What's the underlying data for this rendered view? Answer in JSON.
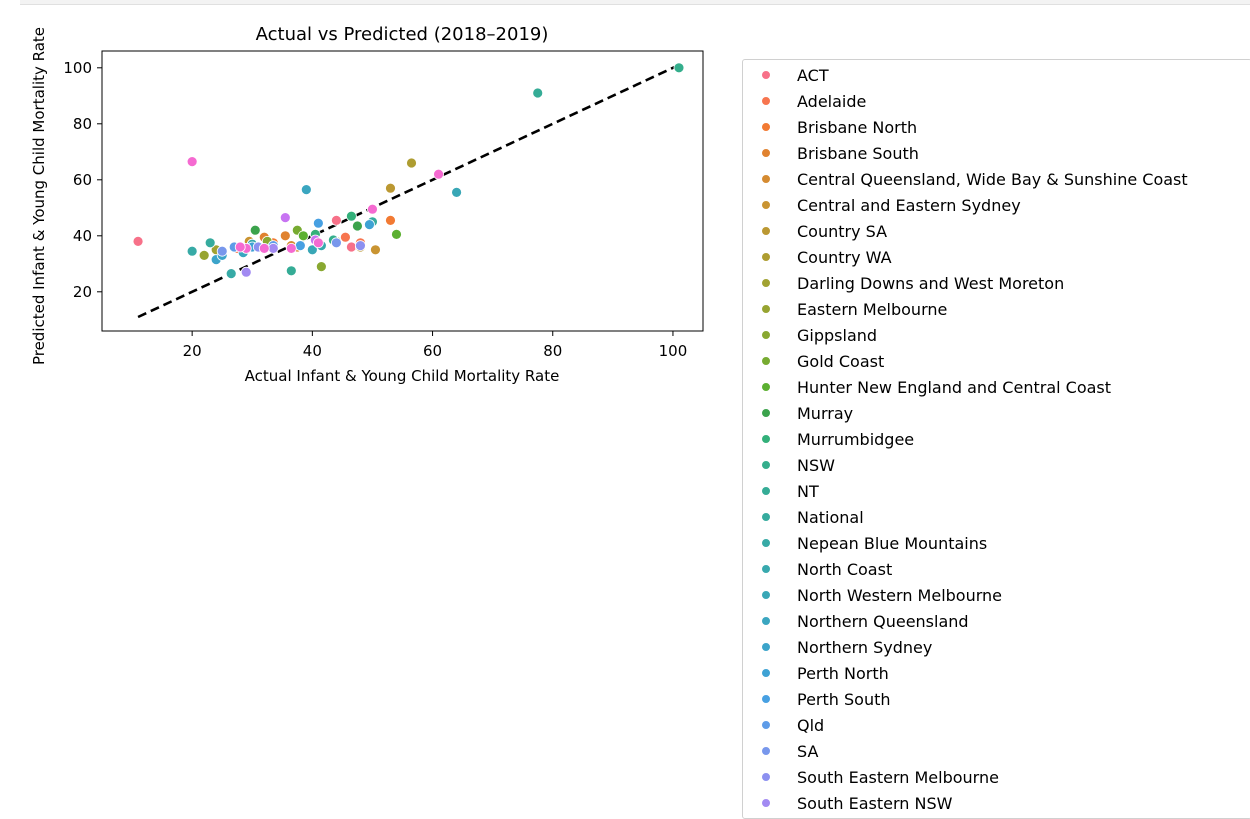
{
  "chart_data": {
    "type": "scatter",
    "title": "Actual vs Predicted (2018–2019)",
    "xlabel": "Actual Infant & Young Child Mortality Rate",
    "ylabel": "Predicted Infant & Young Child Mortality Rate",
    "xlim": [
      5,
      105
    ],
    "ylim": [
      6,
      106
    ],
    "xticks": [
      "20",
      "40",
      "60",
      "80",
      "100"
    ],
    "yticks": [
      "20",
      "40",
      "60",
      "80",
      "100"
    ],
    "reference_line": {
      "style": "dashed",
      "color": "#000000",
      "from": [
        11,
        11
      ],
      "to": [
        101,
        101
      ]
    },
    "legend_placement": "outside-right",
    "series": [
      {
        "name": "ACT",
        "color": "#f77189",
        "points": [
          [
            11,
            38
          ],
          [
            46.5,
            36
          ],
          [
            44,
            45.5
          ]
        ]
      },
      {
        "name": "Adelaide",
        "color": "#f7754f",
        "points": [
          [
            45.5,
            39.5
          ],
          [
            48,
            37.5
          ],
          [
            27.5,
            35.5
          ]
        ]
      },
      {
        "name": "Brisbane North",
        "color": "#f27a33",
        "points": [
          [
            53,
            45.5
          ],
          [
            33.5,
            37.5
          ]
        ]
      },
      {
        "name": "Brisbane South",
        "color": "#e0822f",
        "points": [
          [
            35.5,
            40
          ],
          [
            32,
            39.5
          ]
        ]
      },
      {
        "name": "Central Queensland, Wide Bay & Sunshine Coast",
        "color": "#d58b31",
        "points": [
          [
            37.5,
            36
          ],
          [
            36.5,
            36.5
          ]
        ]
      },
      {
        "name": "Central and Eastern Sydney",
        "color": "#c99432",
        "points": [
          [
            29.5,
            38
          ],
          [
            50.5,
            35
          ]
        ]
      },
      {
        "name": "Country SA",
        "color": "#bb9832",
        "points": [
          [
            53,
            57
          ],
          [
            48,
            36
          ]
        ]
      },
      {
        "name": "Country WA",
        "color": "#ae9d31",
        "points": [
          [
            56.5,
            66
          ],
          [
            44,
            38
          ]
        ]
      },
      {
        "name": "Darling Downs and West Moreton",
        "color": "#a1a232",
        "points": [
          [
            38,
            36.5
          ],
          [
            24,
            35
          ]
        ]
      },
      {
        "name": "Eastern Melbourne",
        "color": "#97a431",
        "points": [
          [
            22,
            33
          ],
          [
            30,
            37
          ]
        ]
      },
      {
        "name": "Gippsland",
        "color": "#89a831",
        "points": [
          [
            41.5,
            29
          ],
          [
            32.5,
            38
          ]
        ]
      },
      {
        "name": "Gold Coast",
        "color": "#77ab31",
        "points": [
          [
            37.5,
            42
          ],
          [
            43.5,
            38.5
          ]
        ]
      },
      {
        "name": "Hunter New England and Central Coast",
        "color": "#5cb031",
        "points": [
          [
            54,
            40.5
          ],
          [
            38.5,
            40
          ]
        ]
      },
      {
        "name": "Murray",
        "color": "#3ba34c",
        "points": [
          [
            30.5,
            42
          ],
          [
            47.5,
            43.5
          ]
        ]
      },
      {
        "name": "Murrumbidgee",
        "color": "#33b07a",
        "points": [
          [
            46.5,
            47
          ],
          [
            40.5,
            40.5
          ]
        ]
      },
      {
        "name": "NSW",
        "color": "#34ae8c",
        "points": [
          [
            101,
            100
          ],
          [
            43.5,
            38.5
          ]
        ]
      },
      {
        "name": "NT",
        "color": "#35ac96",
        "points": [
          [
            77.5,
            91
          ],
          [
            36.5,
            27.5
          ]
        ]
      },
      {
        "name": "National",
        "color": "#36ab9e",
        "points": [
          [
            50,
            45
          ],
          [
            23,
            37.5
          ]
        ]
      },
      {
        "name": "Nepean Blue Mountains",
        "color": "#37aaa6",
        "points": [
          [
            20,
            34.5
          ],
          [
            26.5,
            26.5
          ]
        ]
      },
      {
        "name": "North Coast",
        "color": "#38a9ae",
        "points": [
          [
            41.5,
            36.5
          ],
          [
            30,
            37
          ]
        ]
      },
      {
        "name": "North Western Melbourne",
        "color": "#39a7b6",
        "points": [
          [
            64,
            55.5
          ],
          [
            40,
            35
          ]
        ]
      },
      {
        "name": "Northern Queensland",
        "color": "#3ba6c0",
        "points": [
          [
            39,
            56.5
          ],
          [
            28.5,
            34
          ]
        ]
      },
      {
        "name": "Northern Sydney",
        "color": "#3ca4ca",
        "points": [
          [
            24,
            31.5
          ],
          [
            25,
            33
          ]
        ]
      },
      {
        "name": "Perth North",
        "color": "#3ea2d4",
        "points": [
          [
            49.5,
            44
          ],
          [
            30,
            36
          ]
        ]
      },
      {
        "name": "Perth South",
        "color": "#47a0e2",
        "points": [
          [
            41,
            44.5
          ],
          [
            38,
            36.5
          ]
        ]
      },
      {
        "name": "Qld",
        "color": "#5e9ce8",
        "points": [
          [
            27,
            36
          ],
          [
            33.5,
            36.5
          ]
        ]
      },
      {
        "name": "SA",
        "color": "#7897ec",
        "points": [
          [
            44,
            37.5
          ],
          [
            25,
            34.5
          ]
        ]
      },
      {
        "name": "South Eastern Melbourne",
        "color": "#8c90f0",
        "points": [
          [
            48,
            36.5
          ],
          [
            31,
            36
          ]
        ]
      },
      {
        "name": "South Eastern NSW",
        "color": "#a28af2",
        "points": [
          [
            29,
            27
          ],
          [
            33.5,
            35.5
          ]
        ]
      },
      {
        "name": "",
        "color": "#c774f2",
        "points": [
          [
            35.5,
            46.5
          ],
          [
            40.5,
            38.5
          ]
        ]
      },
      {
        "name": "",
        "color": "#f56ad1",
        "points": [
          [
            20,
            66.5
          ],
          [
            61,
            62
          ],
          [
            50,
            49.5
          ],
          [
            29,
            35.5
          ],
          [
            36.5,
            35.5
          ],
          [
            32,
            35.5
          ],
          [
            28,
            36
          ],
          [
            41,
            37.5
          ]
        ]
      }
    ]
  }
}
